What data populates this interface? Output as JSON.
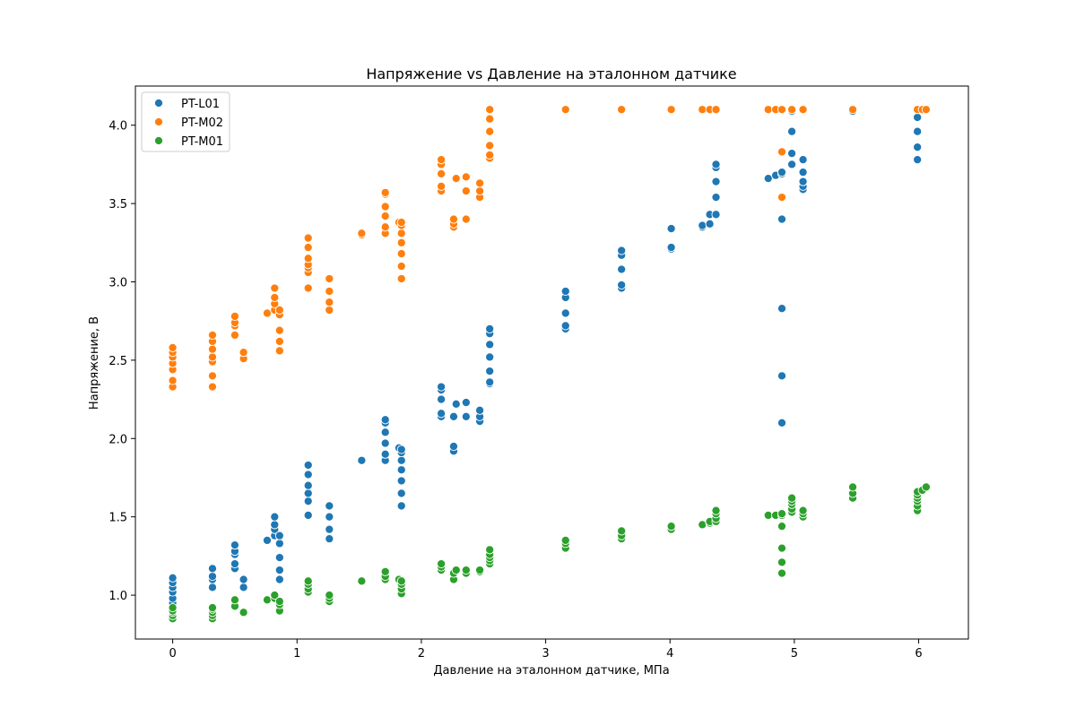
{
  "chart_data": {
    "type": "scatter",
    "title": "Напряжение vs Давление на эталонном датчике",
    "xlabel": "Давление на эталонном датчике, МПа",
    "ylabel": "Напряжение, В",
    "xlim": [
      -0.3,
      6.4
    ],
    "ylim": [
      0.72,
      4.25
    ],
    "xticks": [
      0,
      1,
      2,
      3,
      4,
      5,
      6
    ],
    "yticks": [
      1.0,
      1.5,
      2.0,
      2.5,
      3.0,
      3.5,
      4.0
    ],
    "xtick_labels": [
      "0",
      "1",
      "2",
      "3",
      "4",
      "5",
      "6"
    ],
    "ytick_labels": [
      "1.0",
      "1.5",
      "2.0",
      "2.5",
      "3.0",
      "3.5",
      "4.0"
    ],
    "grid": false,
    "legend_position": "top-left",
    "series": [
      {
        "name": "PT-L01",
        "color": "#1f77b4",
        "points": [
          [
            0,
            0.95
          ],
          [
            0,
            0.98
          ],
          [
            0,
            1.02
          ],
          [
            0,
            1.05
          ],
          [
            0,
            1.08
          ],
          [
            0,
            1.11
          ],
          [
            0.32,
            1.05
          ],
          [
            0.32,
            1.1
          ],
          [
            0.32,
            1.12
          ],
          [
            0.32,
            1.17
          ],
          [
            0.5,
            1.17
          ],
          [
            0.5,
            1.2
          ],
          [
            0.5,
            1.26
          ],
          [
            0.5,
            1.28
          ],
          [
            0.5,
            1.32
          ],
          [
            0.57,
            1.05
          ],
          [
            0.57,
            1.1
          ],
          [
            0.76,
            1.35
          ],
          [
            0.82,
            1.38
          ],
          [
            0.82,
            1.42
          ],
          [
            0.82,
            1.45
          ],
          [
            0.82,
            1.5
          ],
          [
            0.86,
            1.1
          ],
          [
            0.86,
            1.16
          ],
          [
            0.86,
            1.24
          ],
          [
            0.86,
            1.33
          ],
          [
            0.86,
            1.38
          ],
          [
            1.09,
            1.51
          ],
          [
            1.09,
            1.6
          ],
          [
            1.09,
            1.65
          ],
          [
            1.09,
            1.7
          ],
          [
            1.09,
            1.77
          ],
          [
            1.09,
            1.83
          ],
          [
            1.26,
            1.36
          ],
          [
            1.26,
            1.42
          ],
          [
            1.26,
            1.5
          ],
          [
            1.26,
            1.57
          ],
          [
            1.52,
            1.86
          ],
          [
            1.71,
            1.86
          ],
          [
            1.71,
            1.9
          ],
          [
            1.71,
            1.97
          ],
          [
            1.71,
            2.04
          ],
          [
            1.71,
            2.1
          ],
          [
            1.71,
            2.12
          ],
          [
            1.82,
            1.94
          ],
          [
            1.84,
            1.57
          ],
          [
            1.84,
            1.65
          ],
          [
            1.84,
            1.73
          ],
          [
            1.84,
            1.8
          ],
          [
            1.84,
            1.86
          ],
          [
            1.84,
            1.91
          ],
          [
            1.84,
            1.93
          ],
          [
            2.16,
            2.14
          ],
          [
            2.16,
            2.16
          ],
          [
            2.16,
            2.25
          ],
          [
            2.16,
            2.31
          ],
          [
            2.16,
            2.33
          ],
          [
            2.26,
            1.92
          ],
          [
            2.26,
            1.95
          ],
          [
            2.26,
            2.14
          ],
          [
            2.28,
            2.22
          ],
          [
            2.36,
            2.14
          ],
          [
            2.36,
            2.23
          ],
          [
            2.47,
            2.11
          ],
          [
            2.47,
            2.14
          ],
          [
            2.47,
            2.18
          ],
          [
            2.55,
            2.35
          ],
          [
            2.55,
            2.36
          ],
          [
            2.55,
            2.43
          ],
          [
            2.55,
            2.52
          ],
          [
            2.55,
            2.6
          ],
          [
            2.55,
            2.67
          ],
          [
            2.55,
            2.7
          ],
          [
            3.16,
            2.7
          ],
          [
            3.16,
            2.72
          ],
          [
            3.16,
            2.8
          ],
          [
            3.16,
            2.9
          ],
          [
            3.16,
            2.94
          ],
          [
            3.61,
            2.96
          ],
          [
            3.61,
            2.98
          ],
          [
            3.61,
            3.08
          ],
          [
            3.61,
            3.17
          ],
          [
            3.61,
            3.2
          ],
          [
            4.01,
            3.21
          ],
          [
            4.01,
            3.22
          ],
          [
            4.01,
            3.34
          ],
          [
            4.26,
            3.35
          ],
          [
            4.26,
            3.36
          ],
          [
            4.32,
            3.37
          ],
          [
            4.32,
            3.43
          ],
          [
            4.37,
            3.43
          ],
          [
            4.37,
            3.54
          ],
          [
            4.37,
            3.64
          ],
          [
            4.37,
            3.73
          ],
          [
            4.37,
            3.75
          ],
          [
            4.79,
            3.66
          ],
          [
            4.85,
            3.68
          ],
          [
            4.9,
            3.69
          ],
          [
            4.9,
            3.7
          ],
          [
            4.9,
            2.1
          ],
          [
            4.9,
            2.4
          ],
          [
            4.9,
            2.83
          ],
          [
            4.9,
            3.4
          ],
          [
            4.98,
            3.75
          ],
          [
            4.98,
            3.82
          ],
          [
            4.98,
            3.96
          ],
          [
            4.98,
            4.09
          ],
          [
            4.98,
            4.1
          ],
          [
            5.07,
            3.59
          ],
          [
            5.07,
            3.61
          ],
          [
            5.07,
            3.64
          ],
          [
            5.07,
            3.7
          ],
          [
            5.07,
            3.78
          ],
          [
            5.47,
            4.09
          ],
          [
            5.99,
            3.78
          ],
          [
            5.99,
            3.86
          ],
          [
            5.99,
            3.96
          ],
          [
            5.99,
            4.05
          ],
          [
            5.99,
            4.1
          ],
          [
            6.06,
            4.1
          ]
        ]
      },
      {
        "name": "PT-M02",
        "color": "#ff7f0e",
        "points": [
          [
            0,
            2.33
          ],
          [
            0,
            2.37
          ],
          [
            0,
            2.44
          ],
          [
            0,
            2.48
          ],
          [
            0,
            2.52
          ],
          [
            0,
            2.55
          ],
          [
            0,
            2.58
          ],
          [
            0.32,
            2.33
          ],
          [
            0.32,
            2.4
          ],
          [
            0.32,
            2.49
          ],
          [
            0.32,
            2.52
          ],
          [
            0.32,
            2.57
          ],
          [
            0.32,
            2.62
          ],
          [
            0.32,
            2.66
          ],
          [
            0.5,
            2.66
          ],
          [
            0.5,
            2.72
          ],
          [
            0.5,
            2.74
          ],
          [
            0.5,
            2.78
          ],
          [
            0.57,
            2.51
          ],
          [
            0.57,
            2.55
          ],
          [
            0.76,
            2.8
          ],
          [
            0.82,
            2.82
          ],
          [
            0.82,
            2.86
          ],
          [
            0.82,
            2.9
          ],
          [
            0.82,
            2.96
          ],
          [
            0.86,
            2.56
          ],
          [
            0.86,
            2.62
          ],
          [
            0.86,
            2.69
          ],
          [
            0.86,
            2.79
          ],
          [
            0.86,
            2.82
          ],
          [
            1.09,
            2.96
          ],
          [
            1.09,
            3.06
          ],
          [
            1.09,
            3.09
          ],
          [
            1.09,
            3.11
          ],
          [
            1.09,
            3.15
          ],
          [
            1.09,
            3.22
          ],
          [
            1.09,
            3.28
          ],
          [
            1.26,
            2.82
          ],
          [
            1.26,
            2.87
          ],
          [
            1.26,
            2.94
          ],
          [
            1.26,
            3.02
          ],
          [
            1.52,
            3.3
          ],
          [
            1.52,
            3.31
          ],
          [
            1.71,
            3.31
          ],
          [
            1.71,
            3.35
          ],
          [
            1.71,
            3.42
          ],
          [
            1.71,
            3.48
          ],
          [
            1.71,
            3.56
          ],
          [
            1.71,
            3.57
          ],
          [
            1.82,
            3.38
          ],
          [
            1.84,
            3.02
          ],
          [
            1.84,
            3.1
          ],
          [
            1.84,
            3.18
          ],
          [
            1.84,
            3.25
          ],
          [
            1.84,
            3.31
          ],
          [
            1.84,
            3.36
          ],
          [
            1.84,
            3.38
          ],
          [
            2.16,
            3.58
          ],
          [
            2.16,
            3.61
          ],
          [
            2.16,
            3.69
          ],
          [
            2.16,
            3.75
          ],
          [
            2.16,
            3.78
          ],
          [
            2.26,
            3.35
          ],
          [
            2.26,
            3.37
          ],
          [
            2.26,
            3.4
          ],
          [
            2.28,
            3.66
          ],
          [
            2.36,
            3.4
          ],
          [
            2.36,
            3.58
          ],
          [
            2.36,
            3.67
          ],
          [
            2.47,
            3.54
          ],
          [
            2.47,
            3.58
          ],
          [
            2.47,
            3.63
          ],
          [
            2.55,
            3.79
          ],
          [
            2.55,
            3.81
          ],
          [
            2.55,
            3.87
          ],
          [
            2.55,
            3.96
          ],
          [
            2.55,
            4.04
          ],
          [
            2.55,
            4.1
          ],
          [
            3.16,
            4.1
          ],
          [
            3.61,
            4.1
          ],
          [
            4.01,
            4.1
          ],
          [
            4.26,
            4.1
          ],
          [
            4.32,
            4.1
          ],
          [
            4.37,
            4.1
          ],
          [
            4.79,
            4.1
          ],
          [
            4.85,
            4.1
          ],
          [
            4.9,
            4.1
          ],
          [
            4.9,
            3.54
          ],
          [
            4.9,
            3.83
          ],
          [
            4.98,
            4.1
          ],
          [
            5.07,
            4.1
          ],
          [
            5.47,
            4.1
          ],
          [
            5.99,
            4.1
          ],
          [
            6.03,
            4.1
          ],
          [
            6.06,
            4.1
          ]
        ]
      },
      {
        "name": "PT-M01",
        "color": "#2ca02c",
        "points": [
          [
            0,
            0.85
          ],
          [
            0,
            0.87
          ],
          [
            0,
            0.89
          ],
          [
            0,
            0.9
          ],
          [
            0,
            0.92
          ],
          [
            0.32,
            0.85
          ],
          [
            0.32,
            0.87
          ],
          [
            0.32,
            0.89
          ],
          [
            0.32,
            0.91
          ],
          [
            0.32,
            0.92
          ],
          [
            0.5,
            0.93
          ],
          [
            0.5,
            0.97
          ],
          [
            0.57,
            0.89
          ],
          [
            0.76,
            0.97
          ],
          [
            0.82,
            0.98
          ],
          [
            0.82,
            1.0
          ],
          [
            0.86,
            0.9
          ],
          [
            0.86,
            0.94
          ],
          [
            0.86,
            0.96
          ],
          [
            1.09,
            1.02
          ],
          [
            1.09,
            1.04
          ],
          [
            1.09,
            1.07
          ],
          [
            1.09,
            1.09
          ],
          [
            1.26,
            0.96
          ],
          [
            1.26,
            0.98
          ],
          [
            1.26,
            1.0
          ],
          [
            1.52,
            1.09
          ],
          [
            1.71,
            1.1
          ],
          [
            1.71,
            1.12
          ],
          [
            1.71,
            1.15
          ],
          [
            1.82,
            1.1
          ],
          [
            1.84,
            1.01
          ],
          [
            1.84,
            1.04
          ],
          [
            1.84,
            1.07
          ],
          [
            1.84,
            1.09
          ],
          [
            2.16,
            1.16
          ],
          [
            2.16,
            1.18
          ],
          [
            2.16,
            1.2
          ],
          [
            2.26,
            1.1
          ],
          [
            2.26,
            1.14
          ],
          [
            2.28,
            1.16
          ],
          [
            2.36,
            1.14
          ],
          [
            2.36,
            1.16
          ],
          [
            2.47,
            1.15
          ],
          [
            2.47,
            1.16
          ],
          [
            2.55,
            1.2
          ],
          [
            2.55,
            1.22
          ],
          [
            2.55,
            1.24
          ],
          [
            2.55,
            1.26
          ],
          [
            2.55,
            1.29
          ],
          [
            3.16,
            1.3
          ],
          [
            3.16,
            1.33
          ],
          [
            3.16,
            1.35
          ],
          [
            3.61,
            1.36
          ],
          [
            3.61,
            1.38
          ],
          [
            3.61,
            1.41
          ],
          [
            4.01,
            1.42
          ],
          [
            4.01,
            1.44
          ],
          [
            4.26,
            1.45
          ],
          [
            4.32,
            1.46
          ],
          [
            4.32,
            1.47
          ],
          [
            4.37,
            1.47
          ],
          [
            4.37,
            1.49
          ],
          [
            4.37,
            1.52
          ],
          [
            4.37,
            1.54
          ],
          [
            4.79,
            1.51
          ],
          [
            4.85,
            1.51
          ],
          [
            4.9,
            1.51
          ],
          [
            4.9,
            1.52
          ],
          [
            4.9,
            1.14
          ],
          [
            4.9,
            1.21
          ],
          [
            4.9,
            1.3
          ],
          [
            4.9,
            1.44
          ],
          [
            4.98,
            1.53
          ],
          [
            4.98,
            1.55
          ],
          [
            4.98,
            1.58
          ],
          [
            4.98,
            1.6
          ],
          [
            4.98,
            1.62
          ],
          [
            5.07,
            1.5
          ],
          [
            5.07,
            1.52
          ],
          [
            5.07,
            1.54
          ],
          [
            5.47,
            1.62
          ],
          [
            5.47,
            1.65
          ],
          [
            5.47,
            1.69
          ],
          [
            5.99,
            1.54
          ],
          [
            5.99,
            1.57
          ],
          [
            5.99,
            1.6
          ],
          [
            5.99,
            1.62
          ],
          [
            5.99,
            1.64
          ],
          [
            5.99,
            1.66
          ],
          [
            6.03,
            1.67
          ],
          [
            6.06,
            1.69
          ]
        ]
      }
    ]
  }
}
